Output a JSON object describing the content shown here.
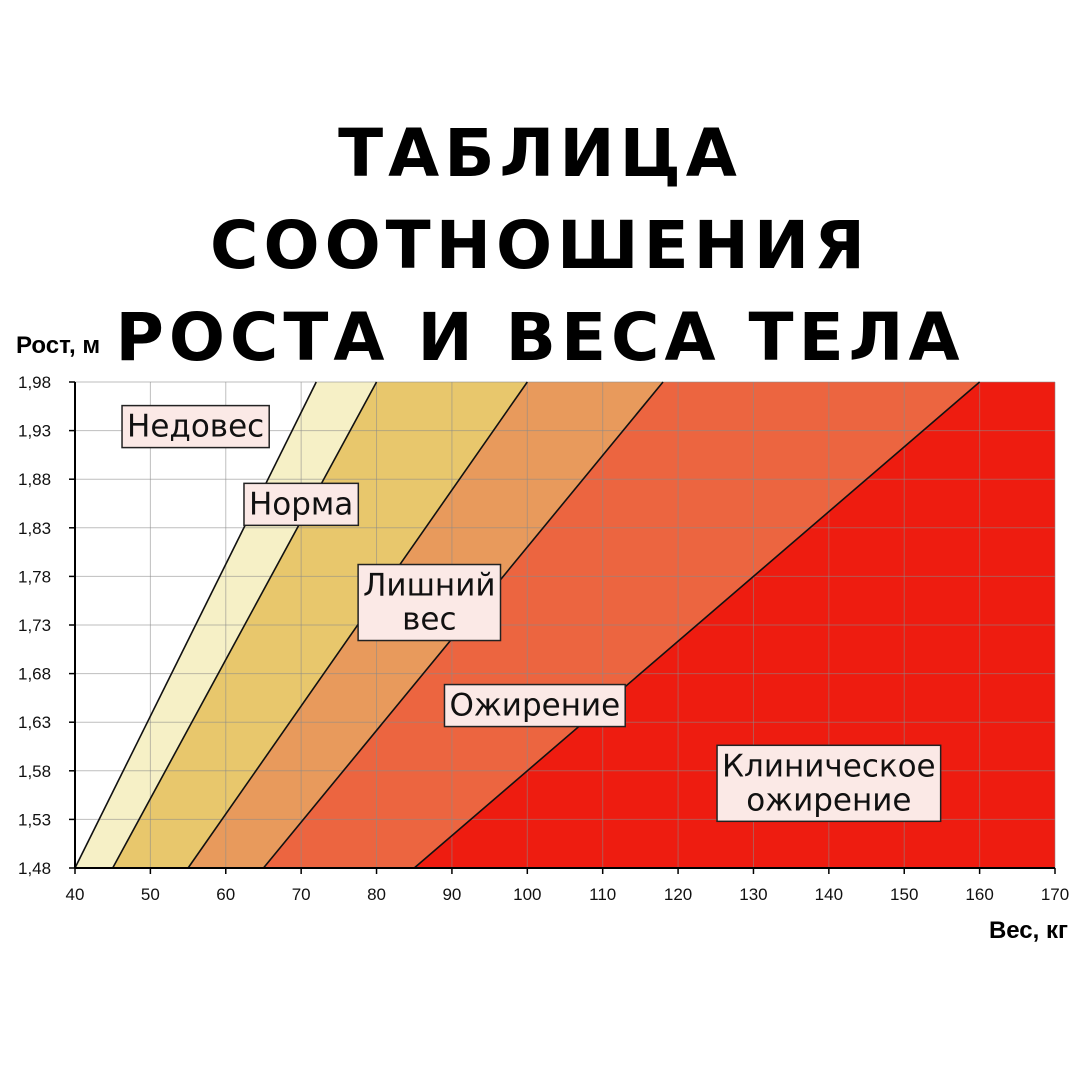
{
  "title": {
    "line1": "ТАБЛИЦА СООТНОШЕНИЯ",
    "line2": "РОСТА И ВЕСА ТЕЛА"
  },
  "chart_data": {
    "type": "area",
    "xlabel": "Вес, кг",
    "ylabel": "Рост, м",
    "xlim": [
      40,
      170
    ],
    "ylim": [
      1.48,
      1.98
    ],
    "x_ticks": [
      "40",
      "50",
      "60",
      "70",
      "80",
      "90",
      "100",
      "110",
      "120",
      "130",
      "140",
      "150",
      "160",
      "170"
    ],
    "y_ticks": [
      "1,98",
      "1,93",
      "1,88",
      "1,83",
      "1,78",
      "1,73",
      "1,68",
      "1,63",
      "1,58",
      "1,53",
      "1,48"
    ],
    "grid": true,
    "boundaries": [
      {
        "name": "under-normal",
        "from": [
          40,
          1.48
        ],
        "to": [
          72,
          1.98
        ]
      },
      {
        "name": "normal-over",
        "from": [
          45,
          1.48
        ],
        "to": [
          80,
          1.98
        ]
      },
      {
        "name": "over-obese",
        "from": [
          55,
          1.48
        ],
        "to": [
          100,
          1.98
        ]
      },
      {
        "name": "obese-clinical",
        "from": [
          65,
          1.48
        ],
        "to": [
          118,
          1.98
        ]
      },
      {
        "name": "clinical",
        "from": [
          85,
          1.48
        ],
        "to": [
          160,
          1.98
        ]
      }
    ],
    "zone_colors": [
      "#ffffff",
      "#f6f0c6",
      "#e8c76c",
      "#e89a5c",
      "#ec6540",
      "#ee1c10"
    ],
    "zones": [
      {
        "label": "Недовес",
        "at": [
          56,
          1.935
        ]
      },
      {
        "label": "Норма",
        "at": [
          70,
          1.855
        ]
      },
      {
        "label": "Лишний\nвес",
        "at": [
          87,
          1.754
        ]
      },
      {
        "label": "Ожирение",
        "at": [
          101,
          1.648
        ]
      },
      {
        "label": "Клиническое\nожирение",
        "at": [
          140,
          1.568
        ]
      }
    ]
  }
}
